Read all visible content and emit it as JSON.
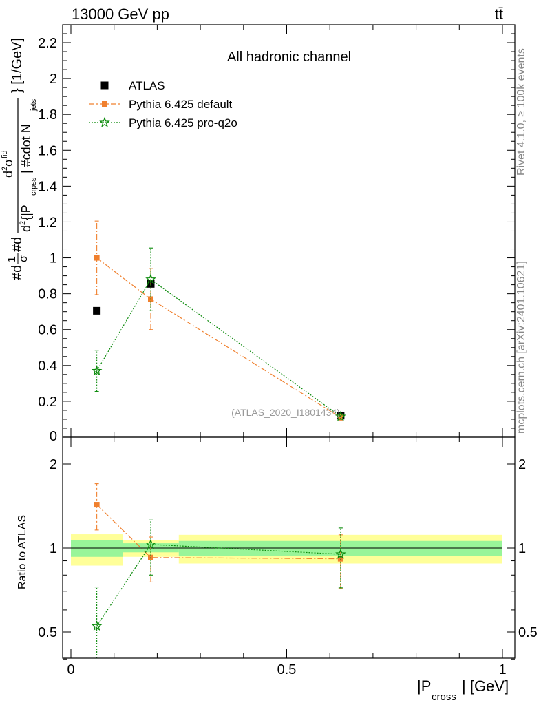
{
  "header": {
    "energy_label": "13000 GeV pp",
    "process_label": "tt̄"
  },
  "side_labels": {
    "rivet": "Rivet 4.1.0, ≥ 100k events",
    "mcplots": "mcplots.cern.ch [arXiv:2401.10621]"
  },
  "colors": {
    "atlas": "#000000",
    "pythia_default": "#f0802e",
    "pythia_proq2o": "#0a8a0a",
    "band_outer": "#ffff99",
    "band_inner": "#99f599"
  },
  "chart_data": [
    {
      "type": "scatter",
      "panel": "main",
      "title": "All hadronic channel",
      "ylabel": "#d#frac{1}{σ}#d#frac{d^{2}σ^{fid}}{d^{2}{|P_{crpss}| #cdot N_{jets}} [1/GeV]",
      "ylabel_parts": {
        "lead": "#d",
        "frac_num": "1",
        "frac_den": "σ",
        "mid": "#d",
        "den_prefix": "d",
        "den_sup": "2",
        "den_text": "{|P",
        "den_sub": "crpss",
        "den_rest": "| #cdot N",
        "den_rest_sub": "jets",
        "num_text": "d",
        "num_sup": "2",
        "num_sigma": "σ",
        "num_sigma_sup": "fid",
        "unit": "} [1/GeV]"
      },
      "watermark": "(ATLAS_2020_I1801434)",
      "ylim": [
        0,
        2.3
      ],
      "yticks": [
        0.2,
        0.4,
        0.6,
        0.8,
        1,
        1.2,
        1.4,
        1.6,
        1.8,
        2,
        2.2
      ],
      "ytick_labels": [
        "0.2",
        "0.4",
        "0.6",
        "0.8",
        "1",
        "1.2",
        "1.4",
        "1.6",
        "1.8",
        "2",
        "2.2"
      ],
      "partial_tick_label": "0",
      "legend_position": "top-left",
      "series": [
        {
          "name": "ATLAS",
          "marker": "square",
          "line": "none",
          "x": [
            0.06,
            0.185,
            0.625
          ],
          "y": [
            0.705,
            0.855,
            0.12
          ],
          "yerr": [
            0,
            0,
            0
          ]
        },
        {
          "name": "Pythia 6.425 default",
          "marker": "small-square",
          "line": "dash-dot",
          "x": [
            0.06,
            0.185,
            0.625
          ],
          "y": [
            1.0,
            0.77,
            0.11
          ],
          "yerr": [
            0.205,
            0.17,
            0.015
          ]
        },
        {
          "name": "Pythia 6.425 pro-q2o",
          "marker": "star",
          "line": "dotted",
          "x": [
            0.06,
            0.185,
            0.625
          ],
          "y": [
            0.37,
            0.88,
            0.115
          ],
          "yerr": [
            0.115,
            0.175,
            0.015
          ]
        }
      ]
    },
    {
      "type": "scatter",
      "panel": "ratio",
      "xlabel": "|P_{cross}| [GeV]",
      "xlabel_parts": {
        "pre": "|P",
        "sub": "cross",
        "post": "| [GeV]"
      },
      "ylabel": "Ratio to ATLAS",
      "xlim": [
        -0.02,
        1.01
      ],
      "xticks": [
        0,
        0.5,
        1
      ],
      "xtick_labels": [
        "0",
        "0.5",
        "1"
      ],
      "ylim": [
        0.34,
        2.25
      ],
      "yticks": [
        0.5,
        1,
        2
      ],
      "ytick_labels": [
        "0.5",
        "1",
        "2"
      ],
      "log_y": true,
      "reference_band": [
        {
          "xlo": 0.0,
          "xhi": 0.12,
          "outer": [
            0.865,
            1.12
          ],
          "inner": [
            0.93,
            1.07
          ]
        },
        {
          "xlo": 0.12,
          "xhi": 0.25,
          "outer": [
            0.93,
            1.065
          ],
          "inner": [
            0.965,
            1.04
          ]
        },
        {
          "xlo": 0.25,
          "xhi": 1.0,
          "outer": [
            0.88,
            1.115
          ],
          "inner": [
            0.935,
            1.06
          ]
        }
      ],
      "series": [
        {
          "name": "Pythia 6.425 default",
          "marker": "small-square",
          "line": "dash-dot",
          "x": [
            0.06,
            0.185,
            0.625
          ],
          "y": [
            1.43,
            0.925,
            0.915
          ],
          "yerr": [
            0.27,
            0.17,
            0.2
          ]
        },
        {
          "name": "Pythia 6.425 pro-q2o",
          "marker": "star",
          "line": "dotted",
          "x": [
            0.06,
            0.185,
            0.625
          ],
          "y": [
            0.525,
            1.03,
            0.95
          ],
          "yerr": [
            0.2,
            0.23,
            0.23
          ]
        }
      ]
    }
  ]
}
